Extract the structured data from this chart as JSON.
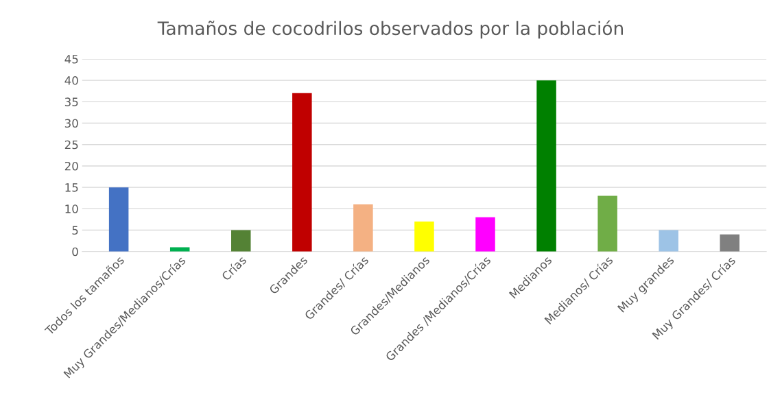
{
  "chart_data": {
    "type": "bar",
    "title": "Tamaños de cocodrilos observados por la población",
    "categories": [
      "Todos los tamaños",
      "Muy Grandes/Medianos/Crías",
      "Crías",
      "Grandes",
      "Grandes/ Crías",
      "Grandes/Medianos",
      "Grandes /Medianos/Crías",
      "Medianos",
      "Medianos/ Crías",
      "Muy grandes",
      "Muy Grandes/ Crías"
    ],
    "values": [
      15,
      1,
      5,
      37,
      11,
      7,
      8,
      40,
      13,
      5,
      4
    ],
    "colors": [
      "#4472c4",
      "#00b050",
      "#548235",
      "#c00000",
      "#f4b183",
      "#ffff00",
      "#ff00ff",
      "#008000",
      "#70ad47",
      "#9dc3e6",
      "#808080"
    ],
    "ylim": [
      0,
      45
    ],
    "yticks": [
      0,
      5,
      10,
      15,
      20,
      25,
      30,
      35,
      40,
      45
    ],
    "grid": "y"
  }
}
